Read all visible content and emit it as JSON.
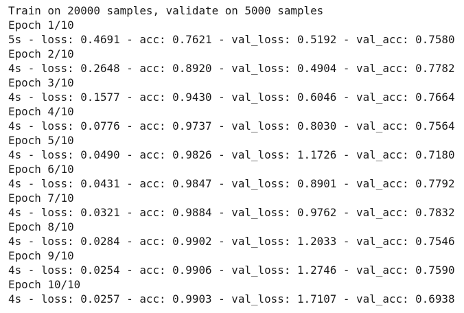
{
  "header": "Train on 20000 samples, validate on 5000 samples",
  "epochs": [
    {
      "label": "Epoch 1/10",
      "line": "5s - loss: 0.4691 - acc: 0.7621 - val_loss: 0.5192 - val_acc: 0.7580"
    },
    {
      "label": "Epoch 2/10",
      "line": "4s - loss: 0.2648 - acc: 0.8920 - val_loss: 0.4904 - val_acc: 0.7782"
    },
    {
      "label": "Epoch 3/10",
      "line": "4s - loss: 0.1577 - acc: 0.9430 - val_loss: 0.6046 - val_acc: 0.7664"
    },
    {
      "label": "Epoch 4/10",
      "line": "4s - loss: 0.0776 - acc: 0.9737 - val_loss: 0.8030 - val_acc: 0.7564"
    },
    {
      "label": "Epoch 5/10",
      "line": "4s - loss: 0.0490 - acc: 0.9826 - val_loss: 1.1726 - val_acc: 0.7180"
    },
    {
      "label": "Epoch 6/10",
      "line": "4s - loss: 0.0431 - acc: 0.9847 - val_loss: 0.8901 - val_acc: 0.7792"
    },
    {
      "label": "Epoch 7/10",
      "line": "4s - loss: 0.0321 - acc: 0.9884 - val_loss: 0.9762 - val_acc: 0.7832"
    },
    {
      "label": "Epoch 8/10",
      "line": "4s - loss: 0.0284 - acc: 0.9902 - val_loss: 1.2033 - val_acc: 0.7546"
    },
    {
      "label": "Epoch 9/10",
      "line": "4s - loss: 0.0254 - acc: 0.9906 - val_loss: 1.2746 - val_acc: 0.7590"
    },
    {
      "label": "Epoch 10/10",
      "line": "4s - loss: 0.0257 - acc: 0.9903 - val_loss: 1.7107 - val_acc: 0.6938"
    }
  ]
}
